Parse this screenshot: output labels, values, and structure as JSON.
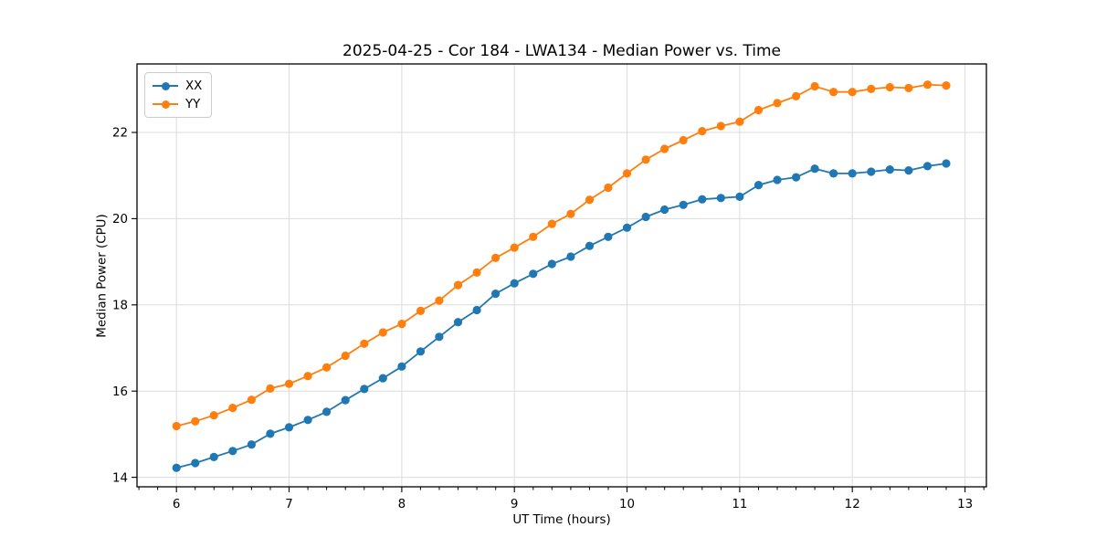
{
  "chart_data": {
    "type": "line",
    "title": "2025-04-25 - Cor 184 - LWA134 - Median Power vs. Time",
    "xlabel": "UT Time (hours)",
    "ylabel": "Median Power (CPU)",
    "xlim": [
      5.65,
      13.19
    ],
    "ylim": [
      13.78,
      23.59
    ],
    "x_major_ticks": [
      6,
      7,
      8,
      9,
      10,
      11,
      12,
      13
    ],
    "y_major_ticks": [
      14,
      16,
      18,
      20,
      22
    ],
    "x_minor_step": 0.16667,
    "grid": "major",
    "grid_color": "#dcdcdc",
    "legend_position": "upper-left",
    "marker": "circle",
    "x": [
      6.0,
      6.167,
      6.333,
      6.5,
      6.667,
      6.833,
      7.0,
      7.167,
      7.333,
      7.5,
      7.667,
      7.833,
      8.0,
      8.167,
      8.333,
      8.5,
      8.667,
      8.833,
      9.0,
      9.167,
      9.333,
      9.5,
      9.667,
      9.833,
      10.0,
      10.167,
      10.333,
      10.5,
      10.667,
      10.833,
      11.0,
      11.167,
      11.333,
      11.5,
      11.667,
      11.833,
      12.0,
      12.167,
      12.333,
      12.5,
      12.667,
      12.833
    ],
    "series": [
      {
        "name": "XX",
        "color": "#1f77b4",
        "values": [
          14.22,
          14.33,
          14.47,
          14.61,
          14.76,
          15.01,
          15.16,
          15.33,
          15.52,
          15.79,
          16.05,
          16.3,
          16.57,
          16.92,
          17.26,
          17.6,
          17.88,
          18.26,
          18.5,
          18.72,
          18.95,
          19.12,
          19.37,
          19.58,
          19.79,
          20.04,
          20.21,
          20.32,
          20.45,
          20.48,
          20.51,
          20.78,
          20.9,
          20.96,
          21.16,
          21.05,
          21.05,
          21.09,
          21.14,
          21.12,
          21.22,
          21.28
        ]
      },
      {
        "name": "YY",
        "color": "#ff7f0e",
        "values": [
          15.19,
          15.3,
          15.44,
          15.61,
          15.8,
          16.06,
          16.17,
          16.35,
          16.55,
          16.82,
          17.1,
          17.36,
          17.56,
          17.86,
          18.1,
          18.46,
          18.75,
          19.09,
          19.33,
          19.58,
          19.88,
          20.11,
          20.44,
          20.72,
          21.05,
          21.37,
          21.62,
          21.82,
          22.03,
          22.15,
          22.25,
          22.52,
          22.68,
          22.84,
          23.07,
          22.94,
          22.94,
          23.01,
          23.05,
          23.03,
          23.11,
          23.09
        ]
      }
    ]
  }
}
